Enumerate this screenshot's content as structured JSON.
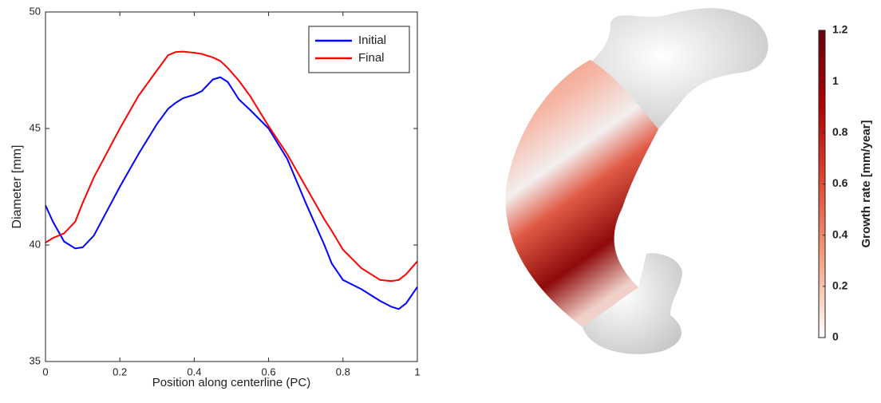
{
  "chart_data": [
    {
      "type": "line",
      "xlabel": "Position along centerline (PC)",
      "ylabel": "Diameter [mm]",
      "x": [
        0,
        0.02,
        0.05,
        0.08,
        0.1,
        0.13,
        0.15,
        0.2,
        0.25,
        0.3,
        0.33,
        0.35,
        0.37,
        0.4,
        0.42,
        0.45,
        0.47,
        0.49,
        0.52,
        0.55,
        0.6,
        0.65,
        0.7,
        0.75,
        0.77,
        0.8,
        0.85,
        0.9,
        0.93,
        0.95,
        0.97,
        1.0
      ],
      "series": [
        {
          "name": "Initial",
          "color": "#0000ff",
          "values": [
            41.7,
            41.0,
            40.15,
            39.85,
            39.9,
            40.4,
            41.0,
            42.5,
            43.9,
            45.2,
            45.85,
            46.1,
            46.3,
            46.45,
            46.6,
            47.1,
            47.2,
            47.0,
            46.25,
            45.8,
            45.0,
            43.7,
            41.8,
            40.0,
            39.2,
            38.5,
            38.1,
            37.6,
            37.35,
            37.25,
            37.5,
            38.2
          ]
        },
        {
          "name": "Final",
          "color": "#ff0000",
          "values": [
            40.1,
            40.3,
            40.5,
            41.0,
            41.8,
            42.9,
            43.5,
            45.0,
            46.4,
            47.5,
            48.15,
            48.28,
            48.3,
            48.25,
            48.2,
            48.05,
            47.9,
            47.6,
            47.05,
            46.4,
            45.1,
            43.9,
            42.5,
            41.1,
            40.6,
            39.8,
            39.0,
            38.5,
            38.45,
            38.5,
            38.75,
            39.3
          ]
        }
      ],
      "xlim": [
        0,
        1
      ],
      "xticks": [
        0,
        0.2,
        0.4,
        0.6,
        0.8,
        1
      ],
      "ylim": [
        35,
        50
      ],
      "yticks": [
        35,
        40,
        45,
        50
      ],
      "legend": "northeast"
    },
    {
      "type": "colorbar",
      "label": "Growth rate [mm/year]",
      "colors": [
        "#ffffff",
        "#f4a582",
        "#e34a33",
        "#b30000",
        "#67000d"
      ],
      "ylim": [
        0,
        1.2
      ],
      "yticks": [
        0,
        0.2,
        0.4,
        0.6,
        0.8,
        1,
        1.2
      ]
    }
  ]
}
